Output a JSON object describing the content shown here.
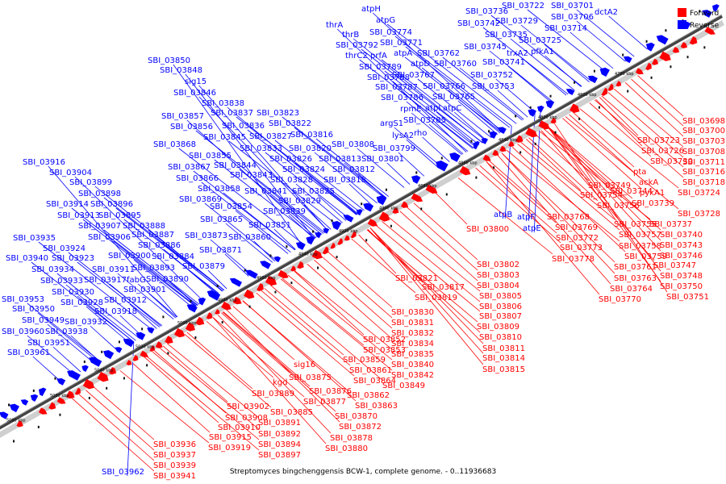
{
  "legend": {
    "forward_label": "Forward",
    "reverse_label": "Reverse",
    "forward_color": "#ff0000",
    "reverse_color": "#0000ff"
  },
  "caption": "Streptomyces bingchenggensis BCW-1, complete genome. - 0..11936683",
  "ticks": [
    "4780 kbp",
    "4800 kbp",
    "4820 kbp",
    "4840 kbp",
    "4860 kbp",
    "4880 kbp",
    "4900 kbp",
    "4920 kbp",
    "4940 kbp",
    "4960 kbp",
    "4980 kbp",
    "5000 kbp",
    "5020 kbp",
    "5040 kbp",
    "5060 kbp",
    "5080 kbp"
  ],
  "genes_reverse": [
    "dctA2",
    "SBI_03701",
    "SBI_03706",
    "SBI_03714",
    "SBI_03722",
    "SBI_03729",
    "SBI_03725",
    "pfkA1",
    "SBI_03736",
    "SBI_03742",
    "SBI_03735",
    "trxA2",
    "SBI_03745",
    "SBI_03741",
    "atpH",
    "atpG",
    "SBI_03774",
    "SBI_03771",
    "atpA",
    "SBI_03762",
    "atpD",
    "SBI_03760",
    "SBI_03767",
    "SBI_03752",
    "SBI_03766",
    "SBI_03753",
    "SBI_03765",
    "atpC",
    "atpI",
    "thrA",
    "thrB",
    "SBI_03792",
    "thrC2",
    "prfA",
    "SBI_03789",
    "SBI_03788",
    "SBI_03787",
    "SBI_03786",
    "rpmE",
    "SBI_03785",
    "argS1",
    "rho",
    "lysA2",
    "SBI_03799",
    "SBI_03801",
    "SBI_03850",
    "SBI_03848",
    "sig15",
    "SBI_03846",
    "SBI_03838",
    "SBI_03857",
    "SBI_03837",
    "SBI_03823",
    "SBI_03856",
    "SBI_03836",
    "SBI_03822",
    "SBI_03845",
    "SBI_03827",
    "SBI_03816",
    "SBI_03868",
    "SBI_03833",
    "SBI_03820",
    "SBI_03808",
    "SBI_03855",
    "SBI_03826",
    "SBI_03813",
    "SBI_03867",
    "SBI_03844",
    "SBI_03824",
    "SBI_03812",
    "SBI_03866",
    "SBI_03843",
    "SBI_03828",
    "SBI_03818",
    "SBI_03858",
    "SBI_03841",
    "SBI_03825",
    "SBI_03869",
    "SBI_03829",
    "SBI_03854",
    "SBI_03839",
    "SBI_03865",
    "SBI_03851",
    "SBI_03873",
    "SBI_03860",
    "SBI_03871",
    "SBI_03879",
    "SBI_03916",
    "SBI_03904",
    "SBI_03899",
    "SBI_03898",
    "SBI_03896",
    "SBI_03914",
    "SBI_03913",
    "SBI_03895",
    "SBI_03907",
    "SBI_03888",
    "SBI_03906",
    "SBI_03887",
    "SBI_03886",
    "SBI_03935",
    "SBI_03924",
    "SBI_03923",
    "SBI_03940",
    "SBI_03900",
    "SBI_03884",
    "SBI_03934",
    "SBI_03911",
    "SBI_03893",
    "SBI_03933",
    "SBI_03917",
    "fabG",
    "SBI_03890",
    "SBI_03930",
    "SBI_03901",
    "SBI_03953",
    "SBI_03928",
    "SBI_03912",
    "SBI_03950",
    "SBI_03918",
    "SBI_03949",
    "SBI_03932",
    "SBI_03960",
    "SBI_03938",
    "SBI_03951",
    "SBI_03961",
    "SBI_03962",
    "atpB",
    "atpF",
    "atpE"
  ],
  "genes_forward": [
    "SBI_03698",
    "SBI_03700",
    "SBI_03723",
    "SBI_03703",
    "SBI_03726",
    "SBI_03708",
    "SBI_03730",
    "SBI_03711",
    "SBI_03716",
    "SBI_03718",
    "SBI_03724",
    "SBI_03728",
    "pta",
    "ackA",
    "pykA1",
    "SBI_03749",
    "SBI_03744",
    "SBI_03739",
    "SBI_03754",
    "SBI_03756",
    "SBI_03737",
    "SBI_03755",
    "SBI_03740",
    "SBI_03757",
    "SBI_03743",
    "SBI_03758",
    "SBI_03746",
    "SBI_03759",
    "SBI_03747",
    "SBI_03761",
    "SBI_03748",
    "SBI_03763",
    "SBI_03750",
    "SBI_03764",
    "SBI_03751",
    "SBI_03770",
    "SBI_03768",
    "SBI_03769",
    "SBI_03772",
    "SBI_03773",
    "SBI_03778",
    "SBI_03800",
    "SBI_03802",
    "SBI_03803",
    "SBI_03804",
    "SBI_03805",
    "SBI_03806",
    "SBI_03807",
    "SBI_03809",
    "SBI_03810",
    "SBI_03811",
    "SBI_03814",
    "SBI_03815",
    "SBI_03821",
    "SBI_03817",
    "SBI_03819",
    "SBI_03830",
    "SBI_03831",
    "SBI_03832",
    "SBI_03834",
    "SBI_03835",
    "SBI_03840",
    "SBI_03842",
    "SBI_03849",
    "SBI_03852",
    "SBI_03853",
    "SBI_03859",
    "SBI_03861",
    "SBI_03864",
    "SBI_03862",
    "SBI_03863",
    "sig16",
    "SBI_03875",
    "SBI_03876",
    "SBI_03877",
    "kgd",
    "SBI_03889",
    "SBI_03885",
    "SBI_03870",
    "SBI_03872",
    "SBI_03891",
    "SBI_03892",
    "SBI_03894",
    "SBI_03897",
    "SBI_03878",
    "SBI_03880",
    "SBI_03902",
    "SBI_03908",
    "SBI_03910",
    "SBI_03915",
    "SBI_03919",
    "SBI_03936",
    "SBI_03937",
    "SBI_03939",
    "SBI_03941"
  ]
}
